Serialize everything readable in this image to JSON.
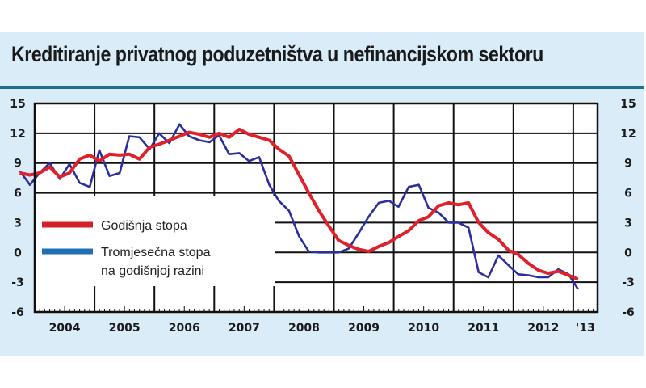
{
  "title": "Kreditiranje privatnog poduzetništva u nefinancijskom sektoru",
  "colors": {
    "background": "#d9ecf8",
    "plot_background": "#ffffff",
    "divider": "#1f6f8b",
    "annual": "#e0202a",
    "quarterly": "#2b2f9e",
    "grid": "#111111"
  },
  "legend": [
    {
      "label": "Godišnja stopa",
      "color": "#d42027"
    },
    {
      "label": "Tromjesečna stopa",
      "label2": "na godišnjoj razini",
      "color": "#1f6fb5"
    }
  ],
  "chart_data": {
    "type": "line",
    "title": "Kreditiranje privatnog poduzetništva u nefinancijskom sektoru",
    "xlabel": "",
    "ylabel": "",
    "ylim": [
      -6,
      15
    ],
    "yticks": [
      15,
      12,
      9,
      6,
      3,
      0,
      -3,
      -6
    ],
    "xticks": [
      "2004",
      "2005",
      "2006",
      "2007",
      "2008",
      "2009",
      "2010",
      "2011",
      "2012",
      "'13"
    ],
    "grid": true,
    "legend_position": "inside-left-middle",
    "x": [
      2004.0,
      2004.17,
      2004.33,
      2004.5,
      2004.67,
      2004.83,
      2005.0,
      2005.17,
      2005.33,
      2005.5,
      2005.67,
      2005.83,
      2006.0,
      2006.17,
      2006.33,
      2006.5,
      2006.67,
      2006.83,
      2007.0,
      2007.17,
      2007.33,
      2007.5,
      2007.67,
      2007.83,
      2008.0,
      2008.17,
      2008.33,
      2008.5,
      2008.67,
      2008.83,
      2009.0,
      2009.17,
      2009.33,
      2009.5,
      2009.67,
      2009.83,
      2010.0,
      2010.17,
      2010.33,
      2010.5,
      2010.67,
      2010.83,
      2011.0,
      2011.17,
      2011.33,
      2011.5,
      2011.67,
      2011.83,
      2012.0,
      2012.17,
      2012.33,
      2012.5,
      2012.67,
      2012.83,
      2013.0,
      2013.17,
      2013.33
    ],
    "series": [
      {
        "name": "Godišnja stopa",
        "values": [
          8.0,
          7.8,
          8.0,
          8.6,
          7.6,
          8.0,
          9.4,
          9.8,
          9.2,
          9.9,
          9.8,
          9.9,
          9.4,
          10.6,
          10.9,
          11.3,
          11.7,
          12.1,
          11.9,
          11.6,
          12.0,
          11.6,
          12.4,
          11.9,
          11.6,
          11.3,
          10.4,
          9.7,
          7.8,
          6.0,
          4.2,
          2.6,
          1.2,
          0.7,
          0.3,
          0.1,
          0.6,
          1.0,
          1.6,
          2.2,
          3.2,
          3.6,
          4.7,
          5.0,
          4.8,
          5.0,
          3.0,
          2.0,
          1.3,
          0.2,
          -0.2,
          -1.1,
          -1.8,
          -2.1,
          -1.9,
          -2.3,
          -2.7
        ]
      },
      {
        "name": "Tromjesečna stopa na godišnjoj razini",
        "values": [
          8.2,
          6.8,
          8.0,
          9.0,
          7.4,
          8.9,
          7.0,
          6.6,
          10.3,
          7.7,
          8.0,
          11.7,
          11.6,
          10.4,
          12.0,
          11.0,
          12.9,
          11.7,
          11.3,
          11.1,
          11.8,
          9.9,
          10.0,
          9.2,
          9.6,
          6.8,
          5.2,
          4.2,
          1.6,
          0.1,
          0.0,
          0.0,
          0.0,
          0.4,
          2.0,
          3.6,
          5.0,
          5.2,
          4.6,
          6.6,
          6.8,
          4.5,
          4.0,
          3.0,
          3.0,
          2.5,
          -2.0,
          -2.5,
          -0.3,
          -1.3,
          -2.2,
          -2.3,
          -2.5,
          -2.5,
          -1.7,
          -2.2,
          -3.7
        ]
      }
    ]
  }
}
